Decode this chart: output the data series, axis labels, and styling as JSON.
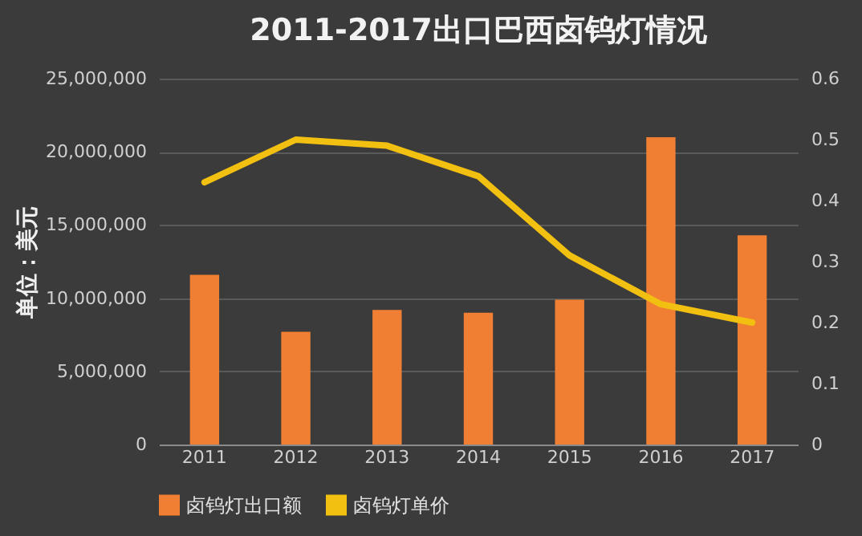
{
  "chart_data": {
    "type": "bar",
    "title": "2011-2017出口巴西卤钨灯情况",
    "ylabel": "单位：美元",
    "categories": [
      "2011",
      "2012",
      "2013",
      "2014",
      "2015",
      "2016",
      "2017"
    ],
    "series": [
      {
        "name": "卤钨灯出口额",
        "color": "#f07f33",
        "values": [
          11600000,
          7700000,
          9200000,
          9000000,
          9900000,
          21000000,
          14300000
        ]
      },
      {
        "name": "卤钨灯单价",
        "type": "line",
        "axis": "y2",
        "color": "#f2c010",
        "values": [
          0.43,
          0.5,
          0.49,
          0.44,
          0.31,
          0.23,
          0.2
        ]
      }
    ],
    "ylim": [
      0,
      25000000
    ],
    "yticks": [
      0,
      {
        "value": 5000000,
        "label": "5,000,000"
      },
      {
        "value": 10000000,
        "label": "10,000,000"
      },
      {
        "value": 15000000,
        "label": "15,000,000"
      },
      {
        "value": 20000000,
        "label": "20,000,000"
      },
      {
        "value": 25000000,
        "label": "25,000,000"
      }
    ],
    "y2lim": [
      0,
      0.6
    ],
    "y2ticks": [
      0,
      0.1,
      0.2,
      0.3,
      0.4,
      0.5,
      0.6
    ],
    "grid": "y",
    "legend": "bottom"
  }
}
